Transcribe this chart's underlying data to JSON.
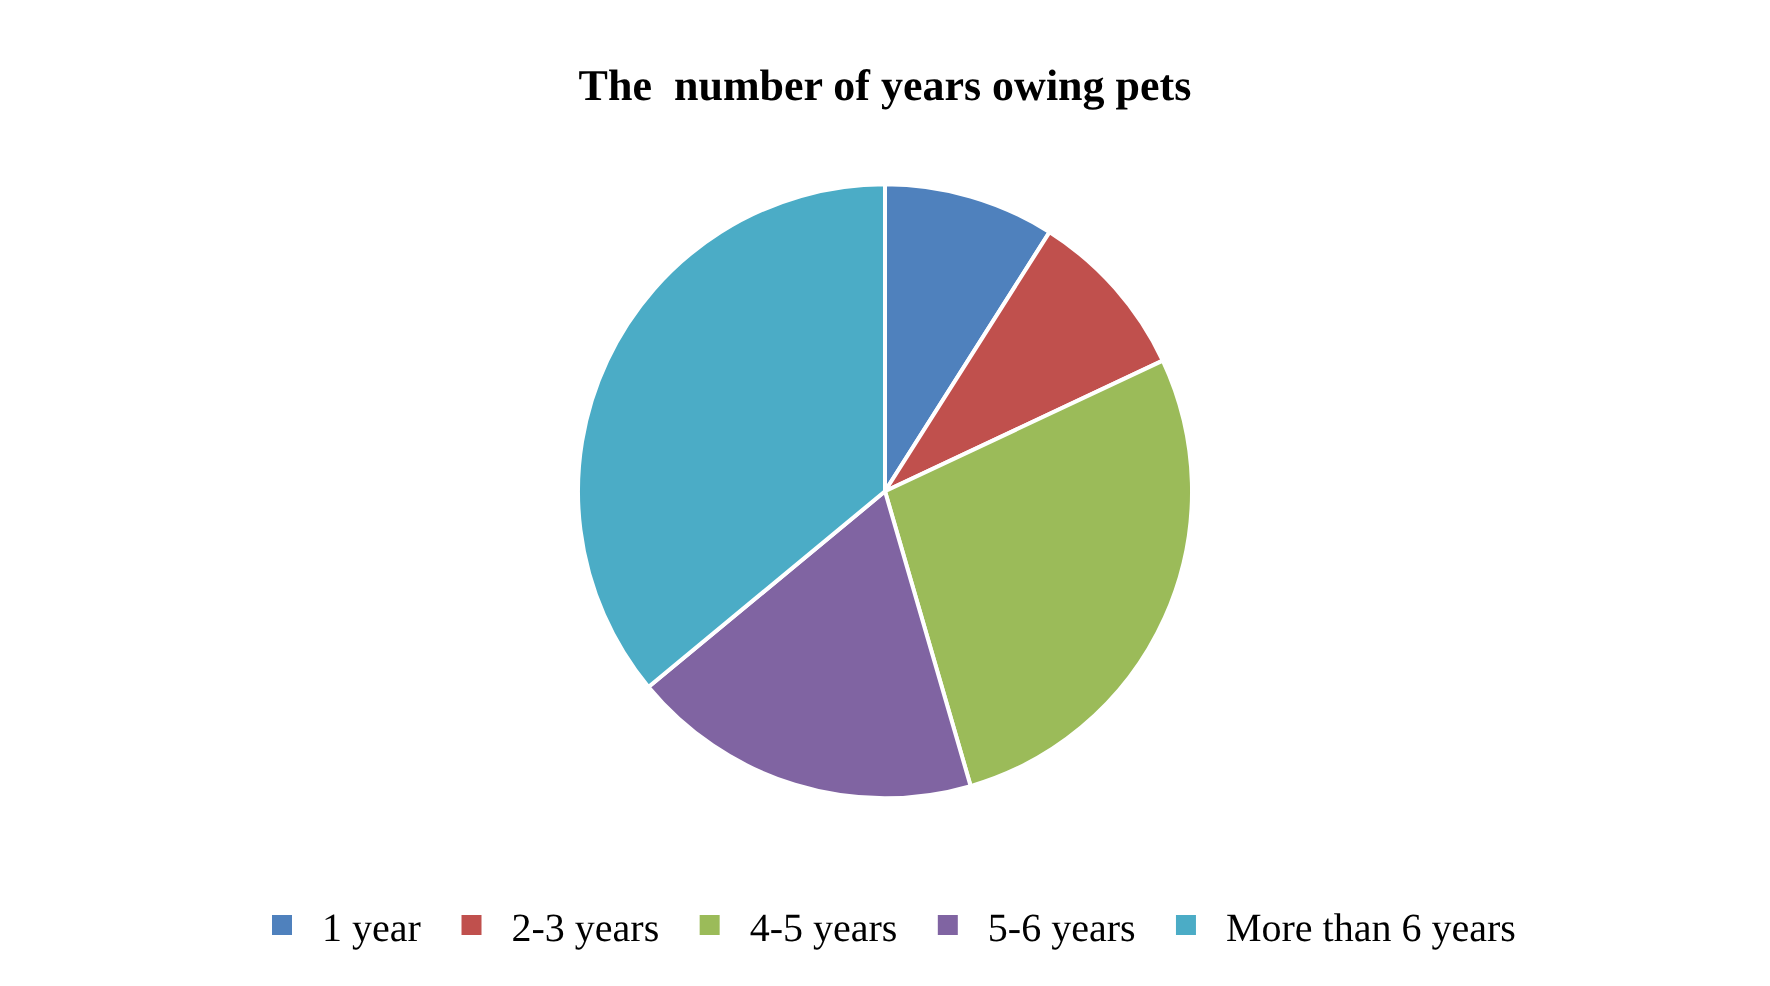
{
  "chart_data": {
    "type": "pie",
    "title": "The  number of years owing pets",
    "categories": [
      "1 year",
      "2-3 years",
      "4-5 years",
      "5-6 years",
      "More than 6 years"
    ],
    "values": [
      9,
      9,
      27.5,
      18.5,
      36
    ],
    "colors": [
      "#4f81bd",
      "#c0504d",
      "#9bbb59",
      "#8064a2",
      "#4bacc6"
    ],
    "legend": "bottom"
  }
}
